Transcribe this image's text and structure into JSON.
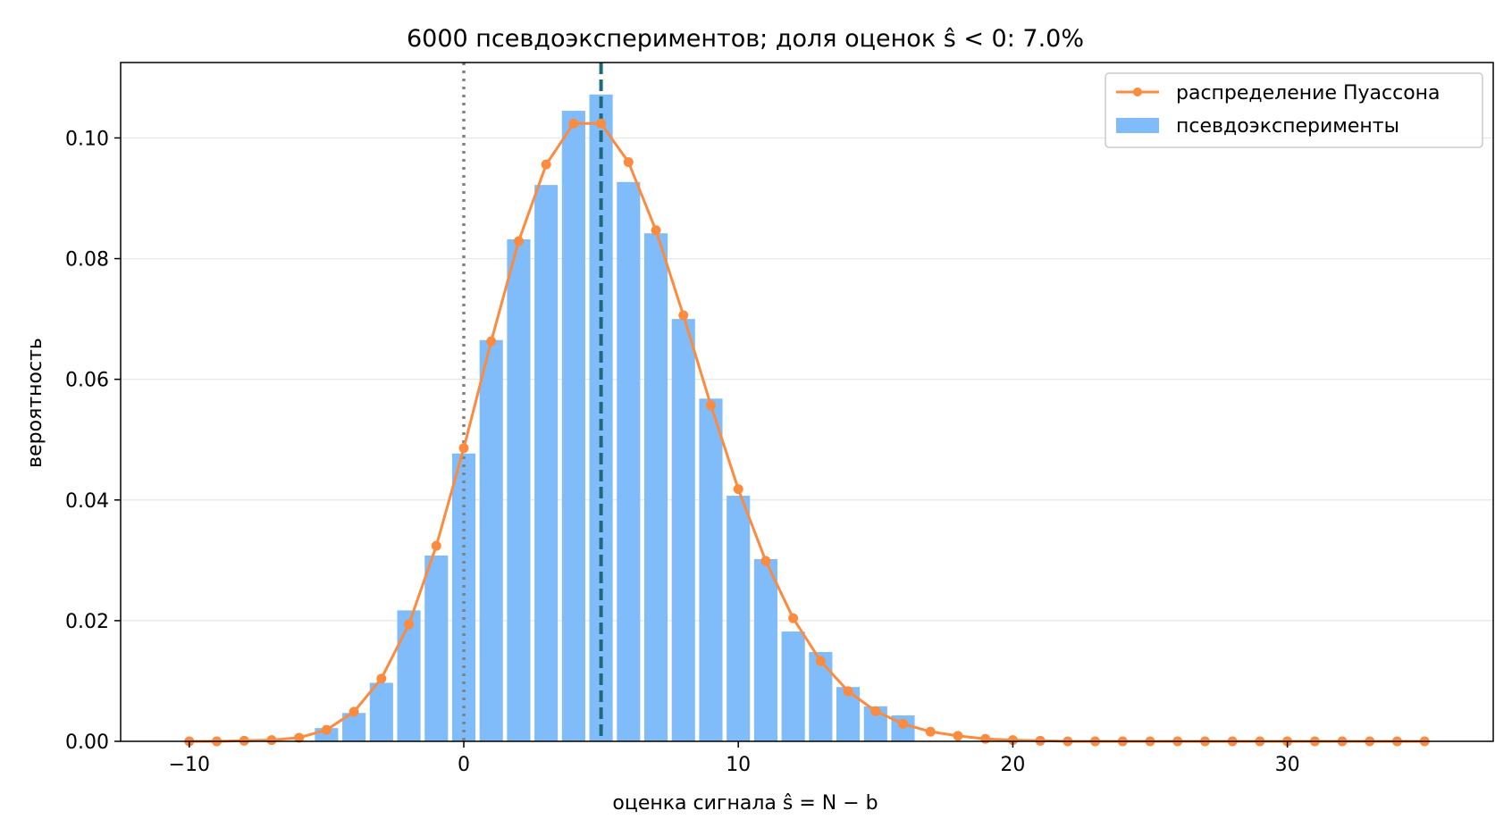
{
  "chart_data": {
    "type": "bar",
    "title": "6000 псевдоэкспериментов; доля оценок ŝ < 0: 7.0%",
    "xlabel": "оценка сигнала ŝ = N − b",
    "ylabel": "вероятность",
    "xlim": [
      -12.5,
      37.5
    ],
    "ylim": [
      0,
      0.1125
    ],
    "xticks": [
      -10,
      0,
      10,
      20,
      30
    ],
    "xtick_labels": [
      "−10",
      "0",
      "10",
      "20",
      "30"
    ],
    "yticks": [
      0,
      0.02,
      0.04,
      0.06,
      0.08,
      0.1
    ],
    "ytick_labels": [
      "0.00",
      "0.02",
      "0.04",
      "0.06",
      "0.08",
      "0.10"
    ],
    "grid": "horizontal",
    "legend_position": "top-right",
    "colors": {
      "bars": "#80bbfa",
      "poisson": "#fb8b3f",
      "observed_line": "#1d6b78",
      "zero_line": "#808080",
      "grid": "#e6e6e6"
    },
    "series": [
      {
        "name": "псевдоэксперименты",
        "type": "bar",
        "x": [
          -5,
          -4,
          -3,
          -2,
          -1,
          0,
          1,
          2,
          3,
          4,
          5,
          6,
          7,
          8,
          9,
          10,
          11,
          12,
          13,
          14,
          15,
          16
        ],
        "values": [
          0.0022,
          0.0047,
          0.0097,
          0.0217,
          0.0308,
          0.0477,
          0.0665,
          0.0832,
          0.0922,
          0.1045,
          0.1072,
          0.0927,
          0.0842,
          0.07,
          0.0568,
          0.0407,
          0.0302,
          0.0182,
          0.0148,
          0.009,
          0.0058,
          0.0043
        ]
      },
      {
        "name": "распределение Пуассона",
        "type": "line",
        "x": [
          -10,
          -9,
          -8,
          -7,
          -6,
          -5,
          -4,
          -3,
          -2,
          -1,
          0,
          1,
          2,
          3,
          4,
          5,
          6,
          7,
          8,
          9,
          10,
          11,
          12,
          13,
          14,
          15,
          16,
          17,
          18,
          19,
          20,
          21,
          22,
          23,
          24,
          25,
          26,
          27,
          28,
          29,
          30,
          31,
          32,
          33,
          34,
          35
        ],
        "values": [
          0.0,
          0.0,
          0.0001,
          0.0002,
          0.0006,
          0.0019,
          0.0049,
          0.0104,
          0.0194,
          0.0324,
          0.0486,
          0.0663,
          0.0829,
          0.0956,
          0.1024,
          0.1024,
          0.096,
          0.0847,
          0.0706,
          0.0557,
          0.0418,
          0.0299,
          0.0204,
          0.0133,
          0.0083,
          0.005,
          0.0029,
          0.0016,
          0.0009,
          0.0004,
          0.0002,
          0.0001,
          0.0,
          0.0,
          0.0,
          0.0,
          0.0,
          0.0,
          0.0,
          0.0,
          0.0,
          0.0,
          0.0,
          0.0,
          0.0,
          0.0
        ]
      }
    ],
    "vlines": [
      {
        "x": 0,
        "style": "dotted"
      },
      {
        "x": 5,
        "style": "dashed"
      }
    ]
  }
}
